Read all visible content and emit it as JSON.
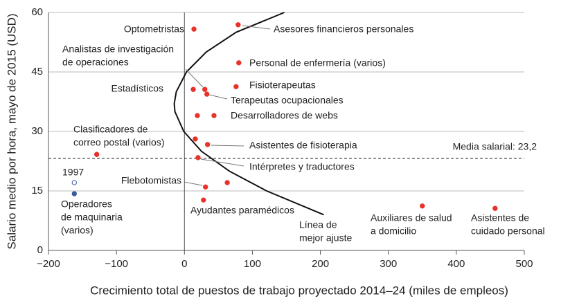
{
  "chart_data": {
    "type": "scatter",
    "x_label": "Crecimiento total de puestos de trabajo proyectado 2014–24 (miles de empleos)",
    "y_label": "Salario medio por hora, mayo de 2015 (USD)",
    "xlim": [
      -200,
      500
    ],
    "xticks": [
      {
        "value": -200,
        "label": "−200"
      },
      {
        "value": -100,
        "label": "−100"
      },
      0,
      100,
      200,
      300,
      400,
      500
    ],
    "ylim": [
      0,
      60
    ],
    "yticks": [
      0,
      15,
      30,
      45,
      60
    ],
    "grid": true,
    "color": "#e8322b",
    "secondary_color": "#3d5a9e",
    "points": [
      {
        "x": 14,
        "y": 55.8,
        "label": [
          "Optometristas"
        ]
      },
      {
        "x": 79,
        "y": 56.9,
        "label": [
          "Asesores financieros personales"
        ]
      },
      {
        "x": 80,
        "y": 47.3,
        "label": [
          "Personal de enfermería (varios)"
        ]
      },
      {
        "x": 13,
        "y": 40.6,
        "label": [
          "Estadísticos"
        ]
      },
      {
        "x": 30,
        "y": 40.6,
        "label": [
          "Analistas de investigación",
          "de operaciones"
        ]
      },
      {
        "x": 33,
        "y": 39.4,
        "label": [
          "Terapeutas ocupacionales"
        ]
      },
      {
        "x": 76,
        "y": 41.3,
        "label": [
          "Fisioterapeutas"
        ]
      },
      {
        "x": 43.5,
        "y": 34.0,
        "label": [
          "Desarrolladores de webs"
        ]
      },
      {
        "x": 19,
        "y": 34.0,
        "label": null
      },
      {
        "x": 16,
        "y": 28.1,
        "label": null
      },
      {
        "x": 34,
        "y": 26.7,
        "label": [
          "Asistentes de fisioterapia"
        ]
      },
      {
        "x": 20,
        "y": 23.4,
        "label": [
          "Intérpretes y traductores"
        ]
      },
      {
        "x": -129,
        "y": 24.2,
        "label": [
          "Clasificadores de",
          "correo postal (varios)"
        ]
      },
      {
        "x": 31,
        "y": 16.0,
        "label": [
          "Flebotomistas"
        ]
      },
      {
        "x": 63,
        "y": 17.1,
        "label": null
      },
      {
        "x": 28,
        "y": 12.7,
        "label": [
          "Ayudantes paramédicos"
        ]
      },
      {
        "x": 350,
        "y": 11.2,
        "label": [
          "Auxiliares de salud",
          "a domicilio"
        ]
      },
      {
        "x": 457,
        "y": 10.6,
        "label": [
          "Asistentes de",
          "cuidado personal"
        ]
      },
      {
        "x": -162,
        "y": 14.3,
        "label": [
          "Operadores",
          "de maquinaria",
          "(varios)"
        ],
        "secondary": true
      },
      {
        "x": -162,
        "y": 17.1,
        "label": [
          "1997"
        ],
        "secondary": true,
        "hollow": true
      }
    ],
    "mean": 23.2,
    "mean_label": "Media salarial: 23,2",
    "fit_line": {
      "label": [
        "Línea de",
        "mejor ajuste"
      ],
      "y": [
        9,
        15,
        20,
        25,
        30,
        35,
        37,
        40,
        45,
        50,
        55,
        60
      ],
      "x": [
        205,
        121,
        66,
        25,
        -1,
        -14,
        -15,
        -12,
        3,
        32,
        76,
        147
      ]
    }
  }
}
